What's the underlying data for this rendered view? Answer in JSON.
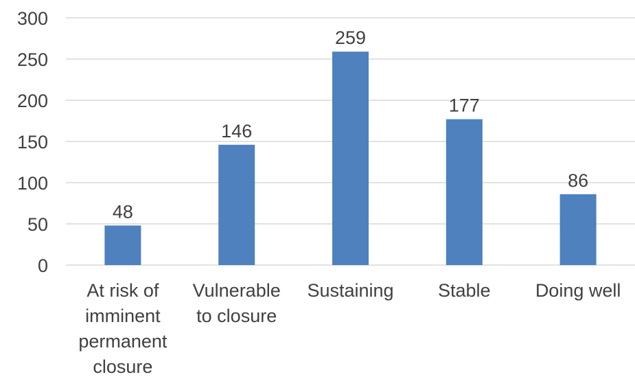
{
  "chart_data": {
    "type": "bar",
    "categories": [
      [
        "At risk of",
        "imminent",
        "permanent",
        "closure"
      ],
      [
        "Vulnerable",
        "to closure"
      ],
      [
        "Sustaining"
      ],
      [
        "Stable"
      ],
      [
        "Doing well"
      ]
    ],
    "values": [
      48,
      146,
      259,
      177,
      86
    ],
    "data_labels": [
      "48",
      "146",
      "259",
      "177",
      "86"
    ],
    "y_ticks": [
      "0",
      "50",
      "100",
      "150",
      "200",
      "250",
      "300"
    ],
    "ylim": [
      0,
      300
    ],
    "grid": true,
    "legend": "none",
    "colors": {
      "bar": "#4e81bd",
      "grid": "#d9d9d9",
      "text": "#404040"
    }
  }
}
